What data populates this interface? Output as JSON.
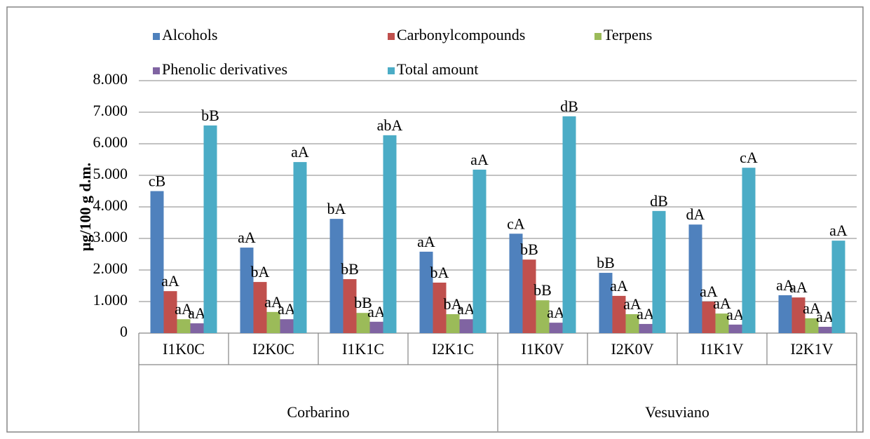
{
  "chart_data": {
    "type": "bar",
    "y_axis_label": "μg/100 g d.m.",
    "categories": [
      "I1K0C",
      "I2K0C",
      "I1K1C",
      "I2K1C",
      "I1K0V",
      "I2K0V",
      "I1K1V",
      "I2K1V"
    ],
    "groups": [
      "Corbarino",
      "Vesuviano"
    ],
    "ylim": [
      0,
      8000
    ],
    "yticks": [
      {
        "value": 0,
        "label": "0"
      },
      {
        "value": 1000,
        "label": "1.000"
      },
      {
        "value": 2000,
        "label": "2.000"
      },
      {
        "value": 3000,
        "label": "3.000"
      },
      {
        "value": 4000,
        "label": "4.000"
      },
      {
        "value": 5000,
        "label": "5.000"
      },
      {
        "value": 6000,
        "label": "6.000"
      },
      {
        "value": 7000,
        "label": "7.000"
      },
      {
        "value": 8000,
        "label": "8.000"
      }
    ],
    "grid": true,
    "legend": "top",
    "series": [
      {
        "name": "Alcohols",
        "color": "#4f81bd",
        "values": [
          4500,
          2710,
          3620,
          2580,
          3150,
          1910,
          3440,
          1200
        ],
        "annotations": [
          "cB",
          "aA",
          "bA",
          "aA",
          "cA",
          "bB",
          "dA",
          "aA"
        ]
      },
      {
        "name": "Carbonylcompounds",
        "color": "#c0504d",
        "values": [
          1330,
          1620,
          1710,
          1600,
          2330,
          1180,
          1000,
          1130
        ],
        "annotations": [
          "aA",
          "bA",
          "bB",
          "bA",
          "bB",
          "aA",
          "aA",
          "aA"
        ]
      },
      {
        "name": "Terpens",
        "color": "#9bbb59",
        "values": [
          440,
          670,
          640,
          600,
          1040,
          600,
          620,
          470
        ],
        "annotations": [
          "aA",
          "aA",
          "bB",
          "bA",
          "bB",
          "aA",
          "aA",
          "aA"
        ]
      },
      {
        "name": "Phenolic derivatives",
        "color": "#8064a2",
        "values": [
          310,
          440,
          360,
          440,
          330,
          290,
          270,
          200
        ],
        "annotations": [
          "aA",
          "aA",
          "aA",
          "aA",
          "aA",
          "aA",
          "aA",
          "aA"
        ]
      },
      {
        "name": "Total amount",
        "color": "#4bacc6",
        "values": [
          6580,
          5420,
          6270,
          5180,
          6870,
          3870,
          5240,
          2930
        ],
        "annotations": [
          "bB",
          "aA",
          "abA",
          "aA",
          "dB",
          "dB",
          "cA",
          "aA"
        ]
      }
    ]
  }
}
